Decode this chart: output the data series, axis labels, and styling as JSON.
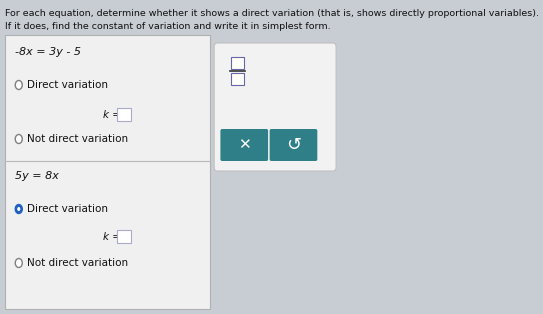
{
  "title_line1": "For each equation, determine whether it shows a direct variation (that is, shows directly proportional variables).",
  "title_line2": "If it does, find the constant of variation and write it in simplest form.",
  "bg_color": "#c8cdd4",
  "left_box_bg": "#f0f0f0",
  "left_box_border": "#b0b0b0",
  "right_box_bg": "#f2f2f2",
  "right_box_border": "#c0c0c0",
  "eq1": "-8x = 3y - 5",
  "eq1_radio1": "Direct variation",
  "eq1_radio1_selected": false,
  "eq1_k_label": "k =",
  "eq1_radio2": "Not direct variation",
  "eq2": "5y = 8x",
  "eq2_radio1": "Direct variation",
  "eq2_radio1_selected": true,
  "eq2_k_label": "k =",
  "eq2_radio2": "Not direct variation",
  "teal_btn_color": "#2e7f87",
  "input_box_border": "#aaaacc",
  "divider_color": "#b8b8b8",
  "selected_radio_color": "#2060c0",
  "unselected_radio_color": "#808080"
}
